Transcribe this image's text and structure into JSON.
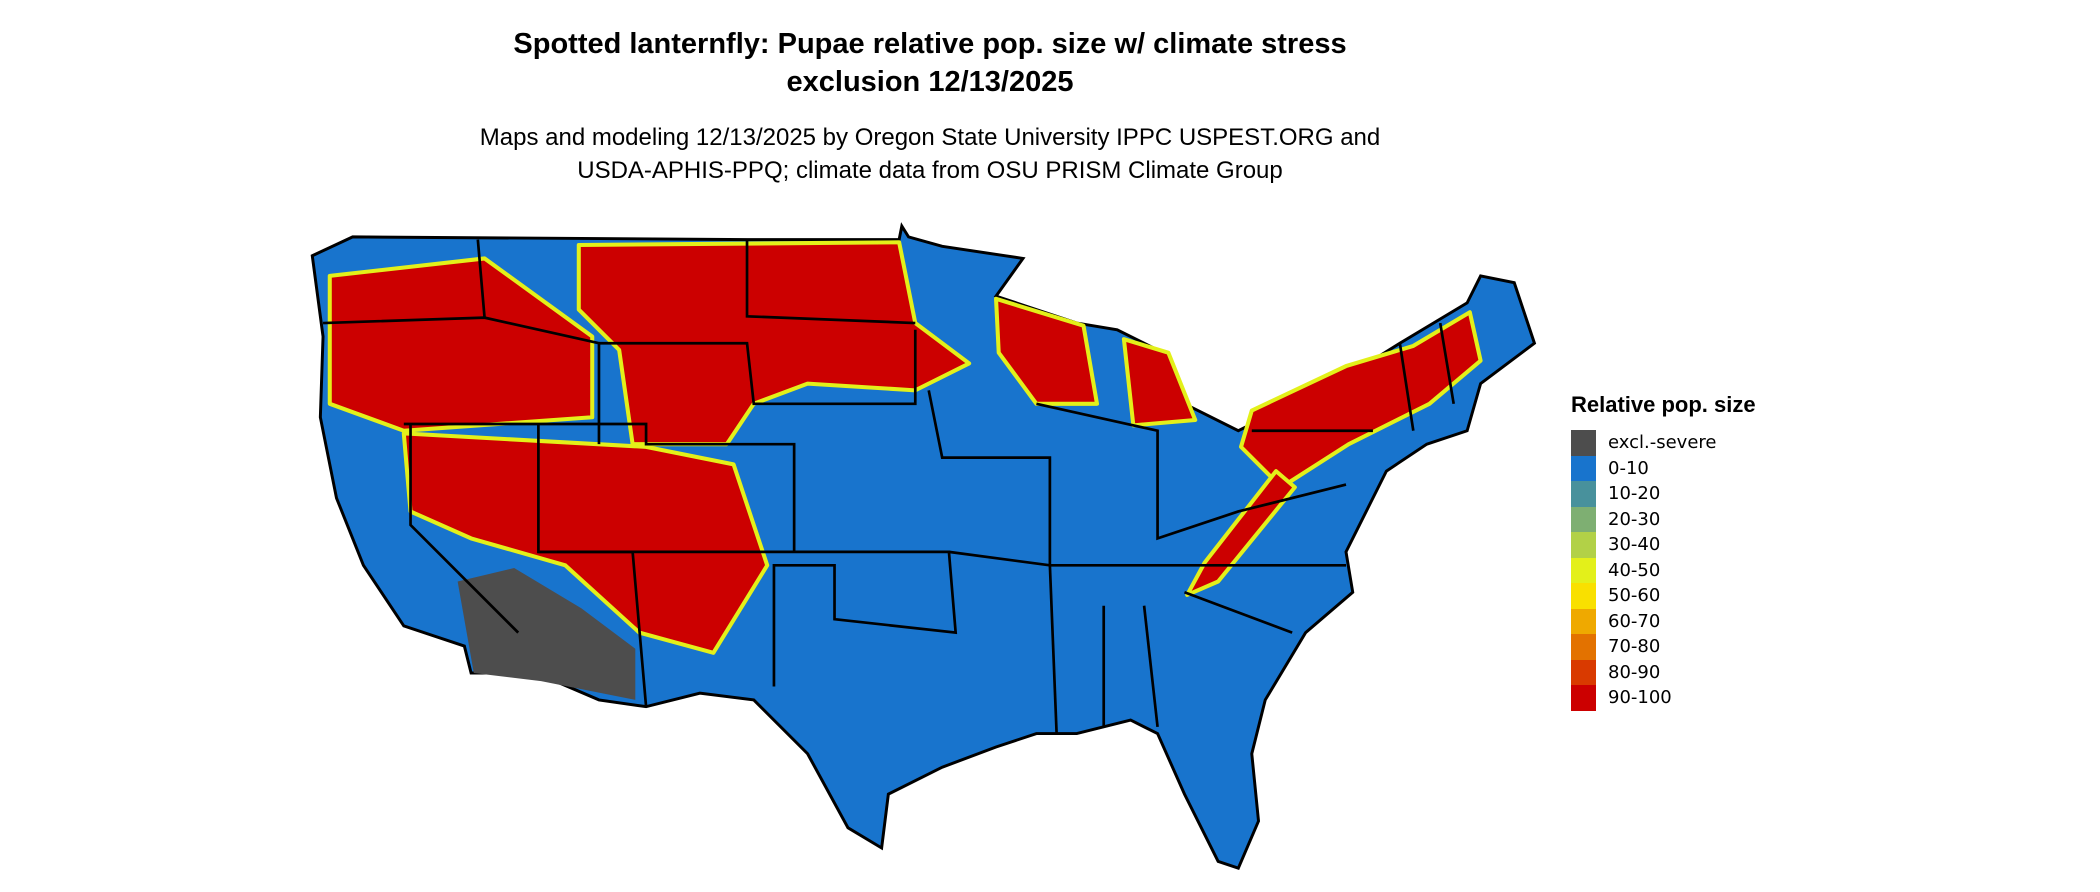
{
  "title_line1": "Spotted lanternfly: Pupae relative pop. size w/ climate stress",
  "title_line2": "exclusion 12/13/2025",
  "subtitle_line1": "Maps and modeling 12/13/2025 by Oregon State University IPPC USPEST.ORG and",
  "subtitle_line2": "USDA-APHIS-PPQ; climate data from OSU PRISM Climate Group",
  "map": {
    "region": "Contiguous United States",
    "background_class_color": "#1874CD",
    "state_border_color": "#000000"
  },
  "legend": {
    "title": "Relative pop. size",
    "placement": "right",
    "items": [
      {
        "label": "excl.-severe",
        "color": "#4D4D4D"
      },
      {
        "label": "0-10",
        "color": "#1874CD"
      },
      {
        "label": "10-20",
        "color": "#48919C"
      },
      {
        "label": "20-30",
        "color": "#7EAF72"
      },
      {
        "label": "30-40",
        "color": "#B2D147"
      },
      {
        "label": "40-50",
        "color": "#E3F01A"
      },
      {
        "label": "50-60",
        "color": "#F9E000"
      },
      {
        "label": "60-70",
        "color": "#EFA900"
      },
      {
        "label": "70-80",
        "color": "#E37200"
      },
      {
        "label": "80-90",
        "color": "#D93A00"
      },
      {
        "label": "90-100",
        "color": "#CC0000"
      }
    ]
  }
}
